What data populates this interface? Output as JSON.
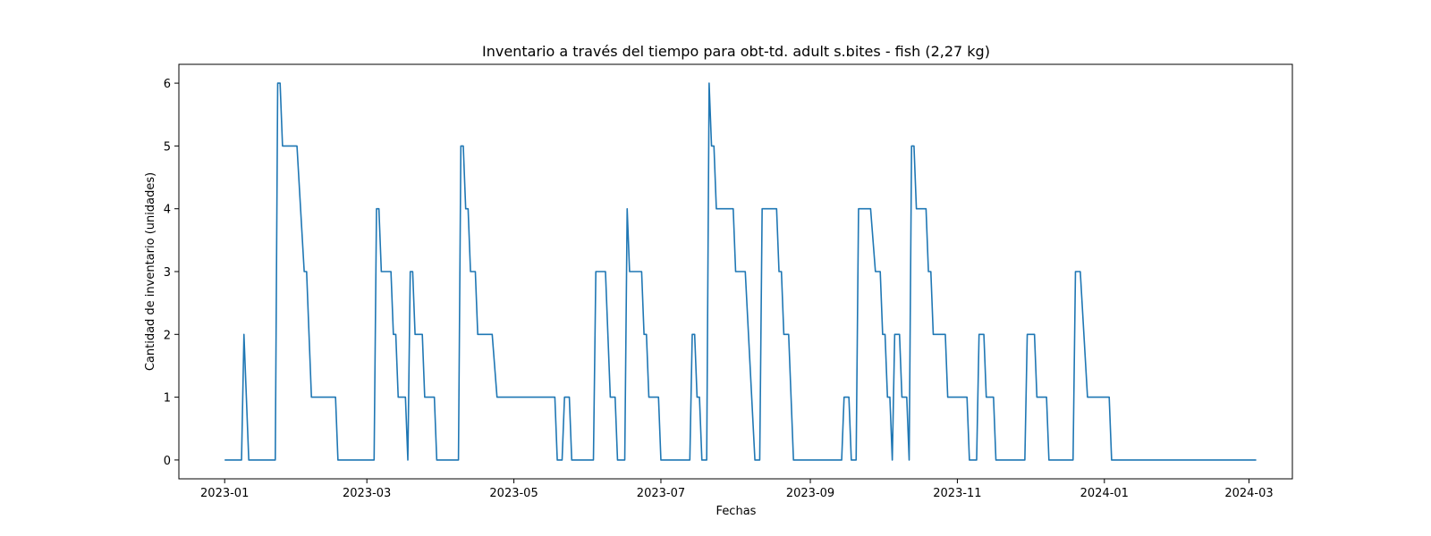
{
  "chart_data": {
    "type": "line",
    "title": "Inventario a través del tiempo para obt-td. adult s.bites - fish (2,27 kg)",
    "xlabel": "Fechas",
    "ylabel": "Cantidad de inventario (unidades)",
    "xlim": [
      "2022-12-13",
      "2024-03-19"
    ],
    "ylim": [
      -0.3,
      6.3
    ],
    "x_ticks": [
      "2023-01-01",
      "2023-03-01",
      "2023-05-01",
      "2023-07-01",
      "2023-09-01",
      "2023-11-01",
      "2024-01-01",
      "2024-03-01"
    ],
    "x_tick_labels": [
      "2023-01",
      "2023-03",
      "2023-05",
      "2023-07",
      "2023-09",
      "2023-11",
      "2024-01",
      "2024-03"
    ],
    "y_ticks": [
      0,
      1,
      2,
      3,
      4,
      5,
      6
    ],
    "y_tick_labels": [
      "0",
      "1",
      "2",
      "3",
      "4",
      "5",
      "6"
    ],
    "grid": false,
    "color": "#1f77b4",
    "series": [
      {
        "name": "",
        "points": [
          [
            "2023-01-01",
            0
          ],
          [
            "2023-01-08",
            0
          ],
          [
            "2023-01-09",
            2
          ],
          [
            "2023-01-11",
            0
          ],
          [
            "2023-01-22",
            0
          ],
          [
            "2023-01-23",
            6
          ],
          [
            "2023-01-24",
            6
          ],
          [
            "2023-01-25",
            5
          ],
          [
            "2023-01-31",
            5
          ],
          [
            "2023-02-03",
            3
          ],
          [
            "2023-02-04",
            3
          ],
          [
            "2023-02-06",
            1
          ],
          [
            "2023-02-16",
            1
          ],
          [
            "2023-02-17",
            0
          ],
          [
            "2023-03-04",
            0
          ],
          [
            "2023-03-05",
            4
          ],
          [
            "2023-03-06",
            4
          ],
          [
            "2023-03-07",
            3
          ],
          [
            "2023-03-11",
            3
          ],
          [
            "2023-03-12",
            2
          ],
          [
            "2023-03-13",
            2
          ],
          [
            "2023-03-14",
            1
          ],
          [
            "2023-03-17",
            1
          ],
          [
            "2023-03-18",
            0
          ],
          [
            "2023-03-19",
            3
          ],
          [
            "2023-03-20",
            3
          ],
          [
            "2023-03-21",
            2
          ],
          [
            "2023-03-24",
            2
          ],
          [
            "2023-03-25",
            1
          ],
          [
            "2023-03-29",
            1
          ],
          [
            "2023-03-30",
            0
          ],
          [
            "2023-04-08",
            0
          ],
          [
            "2023-04-09",
            5
          ],
          [
            "2023-04-10",
            5
          ],
          [
            "2023-04-11",
            4
          ],
          [
            "2023-04-12",
            4
          ],
          [
            "2023-04-13",
            3
          ],
          [
            "2023-04-15",
            3
          ],
          [
            "2023-04-16",
            2
          ],
          [
            "2023-04-22",
            2
          ],
          [
            "2023-04-24",
            1
          ],
          [
            "2023-05-18",
            1
          ],
          [
            "2023-05-19",
            0
          ],
          [
            "2023-05-21",
            0
          ],
          [
            "2023-05-22",
            1
          ],
          [
            "2023-05-24",
            1
          ],
          [
            "2023-05-25",
            0
          ],
          [
            "2023-06-03",
            0
          ],
          [
            "2023-06-04",
            3
          ],
          [
            "2023-06-08",
            3
          ],
          [
            "2023-06-10",
            1
          ],
          [
            "2023-06-12",
            1
          ],
          [
            "2023-06-13",
            0
          ],
          [
            "2023-06-16",
            0
          ],
          [
            "2023-06-17",
            4
          ],
          [
            "2023-06-18",
            3
          ],
          [
            "2023-06-23",
            3
          ],
          [
            "2023-06-24",
            2
          ],
          [
            "2023-06-25",
            2
          ],
          [
            "2023-06-26",
            1
          ],
          [
            "2023-06-30",
            1
          ],
          [
            "2023-07-01",
            0
          ],
          [
            "2023-07-13",
            0
          ],
          [
            "2023-07-14",
            2
          ],
          [
            "2023-07-15",
            2
          ],
          [
            "2023-07-16",
            1
          ],
          [
            "2023-07-17",
            1
          ],
          [
            "2023-07-18",
            0
          ],
          [
            "2023-07-20",
            0
          ],
          [
            "2023-07-21",
            6
          ],
          [
            "2023-07-22",
            5
          ],
          [
            "2023-07-23",
            5
          ],
          [
            "2023-07-24",
            4
          ],
          [
            "2023-07-31",
            4
          ],
          [
            "2023-08-01",
            3
          ],
          [
            "2023-08-05",
            3
          ],
          [
            "2023-08-09",
            0
          ],
          [
            "2023-08-11",
            0
          ],
          [
            "2023-08-12",
            4
          ],
          [
            "2023-08-18",
            4
          ],
          [
            "2023-08-19",
            3
          ],
          [
            "2023-08-20",
            3
          ],
          [
            "2023-08-21",
            2
          ],
          [
            "2023-08-23",
            2
          ],
          [
            "2023-08-25",
            0
          ],
          [
            "2023-09-14",
            0
          ],
          [
            "2023-09-15",
            1
          ],
          [
            "2023-09-17",
            1
          ],
          [
            "2023-09-18",
            0
          ],
          [
            "2023-09-20",
            0
          ],
          [
            "2023-09-21",
            4
          ],
          [
            "2023-09-26",
            4
          ],
          [
            "2023-09-28",
            3
          ],
          [
            "2023-09-30",
            3
          ],
          [
            "2023-10-01",
            2
          ],
          [
            "2023-10-02",
            2
          ],
          [
            "2023-10-03",
            1
          ],
          [
            "2023-10-04",
            1
          ],
          [
            "2023-10-05",
            0
          ],
          [
            "2023-10-06",
            2
          ],
          [
            "2023-10-08",
            2
          ],
          [
            "2023-10-09",
            1
          ],
          [
            "2023-10-11",
            1
          ],
          [
            "2023-10-12",
            0
          ],
          [
            "2023-10-13",
            5
          ],
          [
            "2023-10-14",
            5
          ],
          [
            "2023-10-15",
            4
          ],
          [
            "2023-10-19",
            4
          ],
          [
            "2023-10-20",
            3
          ],
          [
            "2023-10-21",
            3
          ],
          [
            "2023-10-22",
            2
          ],
          [
            "2023-10-27",
            2
          ],
          [
            "2023-10-28",
            1
          ],
          [
            "2023-11-05",
            1
          ],
          [
            "2023-11-06",
            0
          ],
          [
            "2023-11-09",
            0
          ],
          [
            "2023-11-10",
            2
          ],
          [
            "2023-11-12",
            2
          ],
          [
            "2023-11-13",
            1
          ],
          [
            "2023-11-16",
            1
          ],
          [
            "2023-11-17",
            0
          ],
          [
            "2023-11-29",
            0
          ],
          [
            "2023-11-30",
            2
          ],
          [
            "2023-12-03",
            2
          ],
          [
            "2023-12-04",
            1
          ],
          [
            "2023-12-08",
            1
          ],
          [
            "2023-12-09",
            0
          ],
          [
            "2023-12-19",
            0
          ],
          [
            "2023-12-20",
            3
          ],
          [
            "2023-12-22",
            3
          ],
          [
            "2023-12-25",
            1
          ],
          [
            "2024-01-03",
            1
          ],
          [
            "2024-01-04",
            0
          ],
          [
            "2024-03-04",
            0
          ]
        ]
      }
    ]
  }
}
